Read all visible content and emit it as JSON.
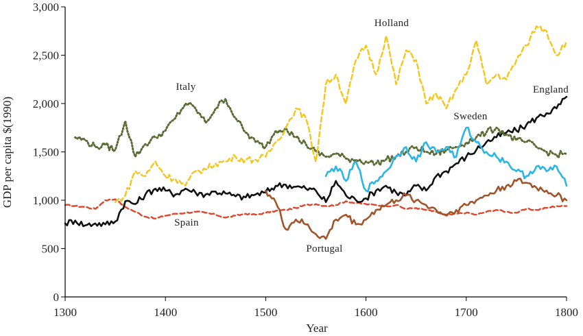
{
  "chart_data": {
    "type": "line",
    "title": "",
    "xlabel": "Year",
    "ylabel": "GDP per capita $(1990)",
    "xlim": [
      1300,
      1800
    ],
    "ylim": [
      0,
      3000
    ],
    "x_ticks": [
      "1300",
      "1400",
      "1500",
      "1600",
      "1700",
      "1800"
    ],
    "y_ticks": [
      "0",
      "500",
      "1,000",
      "1,500",
      "2,000",
      "2,500",
      "3,000"
    ],
    "grid": false,
    "series": [
      {
        "name": "Spain",
        "color": "#e0452a",
        "style": "dashed",
        "x": [
          1300,
          1310,
          1320,
          1330,
          1340,
          1350,
          1360,
          1370,
          1380,
          1390,
          1400,
          1410,
          1420,
          1430,
          1440,
          1450,
          1460,
          1470,
          1480,
          1490,
          1500,
          1510,
          1520,
          1530,
          1540,
          1550,
          1560,
          1570,
          1580,
          1590,
          1600,
          1610,
          1620,
          1630,
          1640,
          1650,
          1660,
          1670,
          1680,
          1690,
          1700,
          1710,
          1720,
          1730,
          1740,
          1750,
          1760,
          1770,
          1780,
          1790,
          1800
        ],
        "values": [
          950,
          940,
          930,
          910,
          1000,
          1010,
          930,
          880,
          830,
          810,
          840,
          860,
          870,
          880,
          870,
          850,
          820,
          840,
          860,
          850,
          870,
          890,
          900,
          920,
          950,
          960,
          940,
          950,
          990,
          970,
          960,
          950,
          940,
          950,
          910,
          920,
          900,
          880,
          840,
          860,
          870,
          850,
          880,
          900,
          880,
          870,
          910,
          900,
          920,
          940,
          940
        ]
      },
      {
        "name": "England",
        "color": "#111111",
        "style": "solid",
        "x": [
          1300,
          1310,
          1320,
          1330,
          1340,
          1350,
          1360,
          1370,
          1380,
          1390,
          1400,
          1410,
          1420,
          1430,
          1440,
          1450,
          1460,
          1470,
          1480,
          1490,
          1500,
          1510,
          1520,
          1530,
          1540,
          1550,
          1560,
          1570,
          1580,
          1590,
          1600,
          1610,
          1620,
          1630,
          1640,
          1650,
          1660,
          1670,
          1680,
          1690,
          1700,
          1710,
          1720,
          1730,
          1740,
          1750,
          1760,
          1770,
          1780,
          1790,
          1800
        ],
        "values": [
          760,
          790,
          740,
          760,
          750,
          780,
          990,
          960,
          1060,
          1120,
          1100,
          1060,
          1120,
          1080,
          1060,
          1090,
          1070,
          1040,
          1030,
          1060,
          1080,
          1150,
          1160,
          1140,
          1120,
          1100,
          980,
          1200,
          1050,
          1000,
          1020,
          1100,
          1150,
          1080,
          1050,
          1150,
          1100,
          1250,
          1300,
          1380,
          1450,
          1520,
          1600,
          1650,
          1700,
          1720,
          1780,
          1850,
          1900,
          1950,
          2070
        ]
      },
      {
        "name": "Italy",
        "color": "#5a6b33",
        "style": "dotted",
        "x": [
          1310,
          1320,
          1330,
          1340,
          1350,
          1360,
          1370,
          1380,
          1390,
          1400,
          1410,
          1420,
          1430,
          1440,
          1450,
          1460,
          1470,
          1480,
          1490,
          1500,
          1510,
          1520,
          1530,
          1540,
          1550,
          1560,
          1570,
          1580,
          1590,
          1600,
          1610,
          1620,
          1630,
          1640,
          1650,
          1660,
          1670,
          1680,
          1690,
          1700,
          1710,
          1720,
          1730,
          1740,
          1750,
          1760,
          1770,
          1780,
          1790,
          1800
        ],
        "values": [
          1650,
          1620,
          1550,
          1570,
          1520,
          1820,
          1450,
          1580,
          1650,
          1720,
          1850,
          2000,
          1950,
          1800,
          1950,
          2050,
          1850,
          1700,
          1600,
          1550,
          1720,
          1750,
          1650,
          1580,
          1500,
          1450,
          1480,
          1430,
          1420,
          1400,
          1380,
          1420,
          1450,
          1500,
          1550,
          1500,
          1480,
          1520,
          1550,
          1600,
          1650,
          1700,
          1750,
          1680,
          1620,
          1600,
          1550,
          1500,
          1470,
          1480
        ]
      },
      {
        "name": "Holland",
        "color": "#f5c518",
        "style": "dashed",
        "x": [
          1350,
          1360,
          1370,
          1380,
          1390,
          1400,
          1410,
          1420,
          1430,
          1440,
          1450,
          1460,
          1470,
          1480,
          1490,
          1500,
          1510,
          1520,
          1530,
          1540,
          1550,
          1560,
          1570,
          1580,
          1590,
          1600,
          1610,
          1620,
          1630,
          1640,
          1650,
          1660,
          1670,
          1680,
          1690,
          1700,
          1710,
          1720,
          1730,
          1740,
          1750,
          1760,
          1770,
          1780,
          1790,
          1800
        ],
        "values": [
          980,
          1050,
          1300,
          1250,
          1400,
          1250,
          1220,
          1150,
          1300,
          1320,
          1380,
          1400,
          1450,
          1420,
          1420,
          1450,
          1600,
          1750,
          1950,
          1850,
          1400,
          2200,
          2300,
          2000,
          2450,
          2600,
          2300,
          2700,
          2200,
          2550,
          2450,
          2000,
          2100,
          1950,
          2150,
          2300,
          2650,
          2200,
          2300,
          2250,
          2450,
          2600,
          2800,
          2750,
          2500,
          2650
        ]
      },
      {
        "name": "Sweden",
        "color": "#2ab5e6",
        "style": "solid",
        "x": [
          1560,
          1570,
          1580,
          1590,
          1600,
          1610,
          1620,
          1630,
          1640,
          1650,
          1660,
          1670,
          1680,
          1690,
          1700,
          1710,
          1720,
          1730,
          1740,
          1750,
          1760,
          1770,
          1780,
          1790,
          1800
        ],
        "values": [
          1250,
          1350,
          1200,
          1400,
          1100,
          1200,
          1300,
          1450,
          1550,
          1400,
          1600,
          1500,
          1550,
          1450,
          1750,
          1600,
          1500,
          1450,
          1400,
          1300,
          1250,
          1350,
          1300,
          1350,
          1150
        ]
      },
      {
        "name": "Portugal",
        "color": "#a0542a",
        "style": "solid",
        "x": [
          1500,
          1510,
          1520,
          1530,
          1540,
          1550,
          1560,
          1570,
          1580,
          1590,
          1600,
          1610,
          1620,
          1630,
          1640,
          1650,
          1660,
          1670,
          1680,
          1690,
          1700,
          1710,
          1720,
          1730,
          1740,
          1750,
          1760,
          1770,
          1780,
          1790,
          1800
        ],
        "values": [
          1100,
          980,
          700,
          800,
          750,
          650,
          600,
          800,
          850,
          750,
          800,
          900,
          950,
          1000,
          1050,
          1000,
          950,
          900,
          850,
          900,
          950,
          1000,
          1050,
          1100,
          1150,
          1200,
          1180,
          1130,
          1100,
          1050,
          1000
        ]
      }
    ],
    "annotations": [
      {
        "text": "Holland",
        "series": "Holland"
      },
      {
        "text": "Italy",
        "series": "Italy"
      },
      {
        "text": "England",
        "series": "England"
      },
      {
        "text": "Sweden",
        "series": "Sweden"
      },
      {
        "text": "Spain",
        "series": "Spain"
      },
      {
        "text": "Portugal",
        "series": "Portugal"
      }
    ]
  }
}
